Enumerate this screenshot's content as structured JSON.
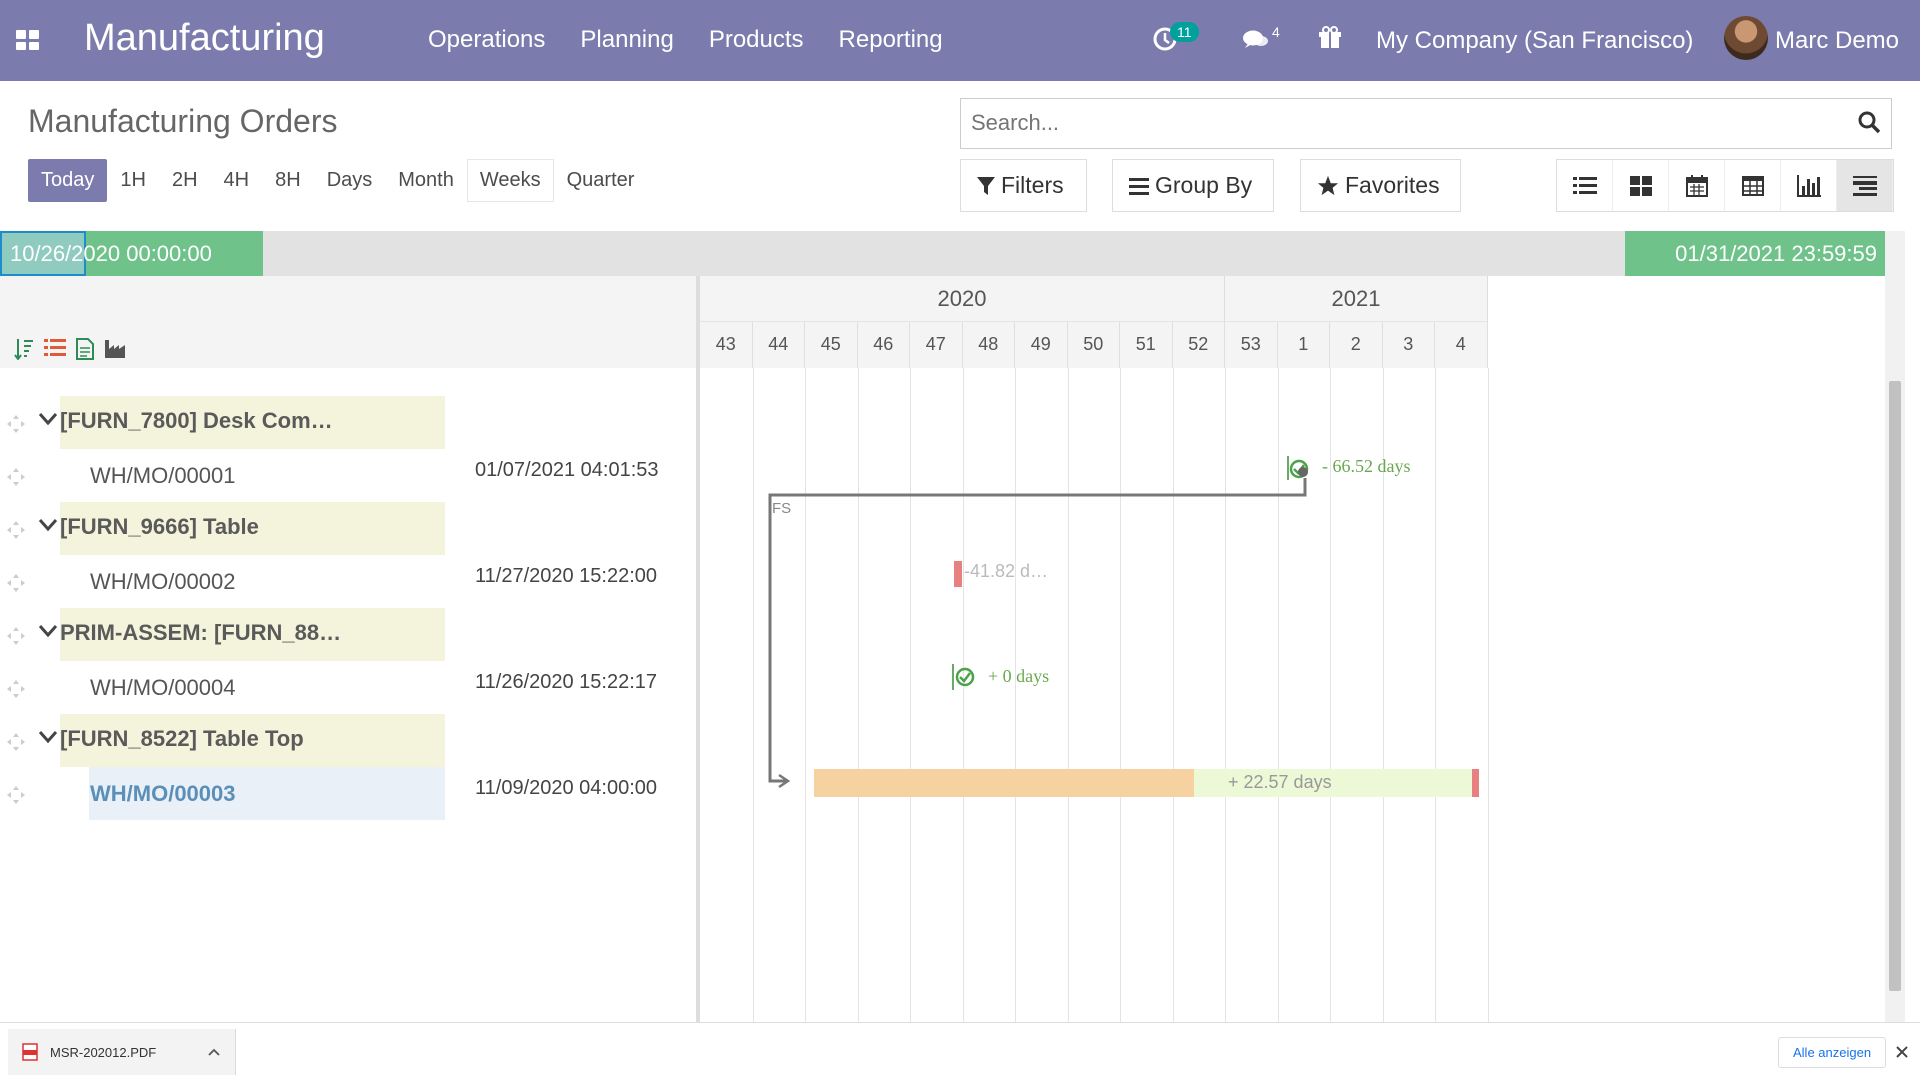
{
  "navbar": {
    "app_title": "Manufacturing",
    "menu": [
      "Operations",
      "Planning",
      "Products",
      "Reporting"
    ],
    "activity_count": "11",
    "message_count": "4",
    "company": "My Company (San Francisco)",
    "user": "Marc Demo",
    "color": "#7c7bad"
  },
  "control": {
    "title": "Manufacturing Orders",
    "scales": [
      "Today",
      "1H",
      "2H",
      "4H",
      "8H",
      "Days",
      "Month",
      "Weeks",
      "Quarter"
    ],
    "active_scale": "Today",
    "search_placeholder": "Search...",
    "filters": "Filters",
    "group_by": "Group By",
    "favorites": "Favorites",
    "views": [
      "list-icon",
      "kanban-icon",
      "calendar-icon",
      "pivot-icon",
      "graph-icon",
      "gantt-icon"
    ]
  },
  "gantt": {
    "start": "10/26/2020 00:00:00",
    "end": "01/31/2021 23:59:59",
    "years": [
      "2020",
      "2021"
    ],
    "weeks": [
      "43",
      "44",
      "45",
      "46",
      "47",
      "48",
      "49",
      "50",
      "51",
      "52",
      "53",
      "1",
      "2",
      "3",
      "4"
    ],
    "groups": [
      {
        "label": "[FURN_7800] Desk Com…",
        "task": "WH/MO/00001",
        "date": "01/07/2021 04:01:53",
        "delta": "- 66.52 days"
      },
      {
        "label": "[FURN_9666] Table",
        "task": "WH/MO/00002",
        "date": "11/27/2020 15:22:00",
        "delta": "-41.82 d…"
      },
      {
        "label": "PRIM-ASSEM: [FURN_88…",
        "task": "WH/MO/00004",
        "date": "11/26/2020 15:22:17",
        "delta": "+ 0 days"
      },
      {
        "label": "[FURN_8522] Table Top",
        "task": "WH/MO/00003",
        "date": "11/09/2020 04:00:00",
        "delta": "+ 22.57 days"
      }
    ],
    "link_label": "FS",
    "colors": {
      "ok": "#6fc38a",
      "late": "#e88080",
      "bar_orange": "#f5d2a0",
      "bar_green": "#ecf8d6"
    }
  },
  "downloads": {
    "file": "MSR-202012.PDF",
    "show_all": "Alle anzeigen"
  }
}
